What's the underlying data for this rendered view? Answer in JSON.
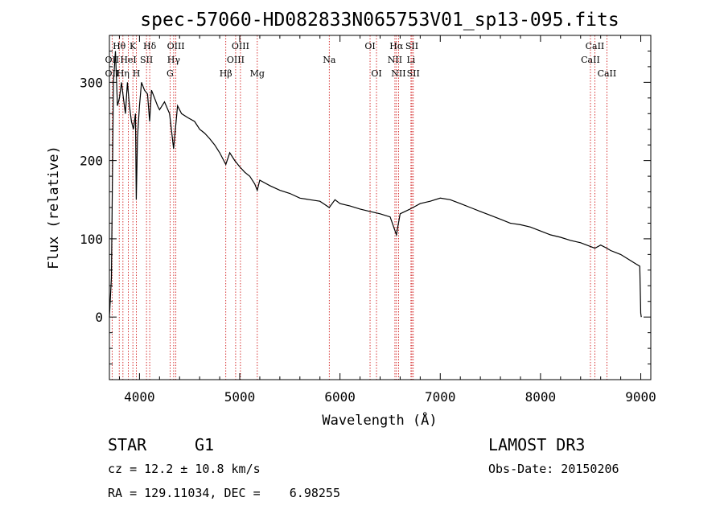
{
  "chart_data": {
    "type": "line",
    "title": "spec-57060-HD082833N065753V01_sp13-095.fits",
    "xlabel": "Wavelength (Å)",
    "ylabel": "Flux (relative)",
    "xlim": [
      3700,
      9100
    ],
    "ylim": [
      -80,
      360
    ],
    "x_ticks": [
      4000,
      5000,
      6000,
      7000,
      8000,
      9000
    ],
    "y_ticks": [
      0,
      100,
      200,
      300
    ],
    "series": [
      {
        "name": "flux",
        "x": [
          3700,
          3720,
          3740,
          3760,
          3780,
          3800,
          3820,
          3840,
          3860,
          3880,
          3900,
          3920,
          3940,
          3960,
          3968,
          3980,
          4000,
          4020,
          4050,
          4080,
          4101,
          4120,
          4150,
          4180,
          4200,
          4250,
          4300,
          4340,
          4380,
          4420,
          4480,
          4550,
          4600,
          4650,
          4700,
          4750,
          4800,
          4861,
          4900,
          4950,
          5000,
          5050,
          5100,
          5150,
          5175,
          5200,
          5300,
          5400,
          5500,
          5600,
          5700,
          5800,
          5893,
          5950,
          6000,
          6100,
          6200,
          6300,
          6400,
          6500,
          6563,
          6600,
          6700,
          6800,
          6900,
          7000,
          7100,
          7200,
          7300,
          7400,
          7500,
          7600,
          7700,
          7800,
          7900,
          8000,
          8100,
          8200,
          8300,
          8400,
          8500,
          8542,
          8600,
          8662,
          8700,
          8800,
          8900,
          8950,
          8990,
          9000,
          9005
        ],
        "values": [
          0,
          50,
          300,
          340,
          270,
          280,
          300,
          280,
          260,
          300,
          270,
          250,
          240,
          260,
          150,
          230,
          270,
          300,
          290,
          285,
          250,
          290,
          280,
          270,
          265,
          275,
          260,
          215,
          270,
          260,
          255,
          250,
          240,
          235,
          228,
          220,
          210,
          195,
          210,
          200,
          192,
          185,
          180,
          170,
          162,
          175,
          168,
          162,
          158,
          152,
          150,
          148,
          140,
          150,
          145,
          142,
          138,
          135,
          132,
          128,
          105,
          132,
          138,
          145,
          148,
          152,
          150,
          145,
          140,
          135,
          130,
          125,
          120,
          118,
          115,
          110,
          105,
          102,
          98,
          95,
          90,
          88,
          92,
          88,
          85,
          80,
          72,
          68,
          65,
          5,
          0
        ]
      }
    ],
    "spectral_lines": [
      {
        "label": "Hθ",
        "x": 3798,
        "row": 1
      },
      {
        "label": "OII",
        "x": 3727,
        "row": 2
      },
      {
        "label": "OII",
        "x": 3727,
        "row": 3
      },
      {
        "label": "Hη",
        "x": 3835,
        "row": 3
      },
      {
        "label": "K",
        "x": 3934,
        "row": 1
      },
      {
        "label": "HeI",
        "x": 3889,
        "row": 2
      },
      {
        "label": "SII",
        "x": 4070,
        "row": 2
      },
      {
        "label": "H",
        "x": 3969,
        "row": 3
      },
      {
        "label": "Hδ",
        "x": 4102,
        "row": 1
      },
      {
        "label": "OIII",
        "x": 4363,
        "row": 1
      },
      {
        "label": "Hγ",
        "x": 4341,
        "row": 2
      },
      {
        "label": "G",
        "x": 4305,
        "row": 3
      },
      {
        "label": "Hβ",
        "x": 4861,
        "row": 3
      },
      {
        "label": "OIII",
        "x": 5007,
        "row": 1
      },
      {
        "label": "OIII",
        "x": 4959,
        "row": 2
      },
      {
        "label": "Mg",
        "x": 5175,
        "row": 3
      },
      {
        "label": "Na",
        "x": 5893,
        "row": 2
      },
      {
        "label": "OI",
        "x": 6300,
        "row": 1
      },
      {
        "label": "OI",
        "x": 6364,
        "row": 3
      },
      {
        "label": "Hα",
        "x": 6563,
        "row": 1
      },
      {
        "label": "SII",
        "x": 6717,
        "row": 1
      },
      {
        "label": "NII",
        "x": 6548,
        "row": 2
      },
      {
        "label": "Li",
        "x": 6708,
        "row": 2
      },
      {
        "label": "NII",
        "x": 6584,
        "row": 3
      },
      {
        "label": "SII",
        "x": 6731,
        "row": 3
      },
      {
        "label": "CaII",
        "x": 8542,
        "row": 1
      },
      {
        "label": "CaII",
        "x": 8498,
        "row": 2
      },
      {
        "label": "CaII",
        "x": 8662,
        "row": 3
      }
    ]
  },
  "footer": {
    "object_type": "STAR",
    "subclass": "G1",
    "survey": "LAMOST DR3",
    "cz_text": "cz = 12.2 ± 10.8 km/s",
    "obs_date": "Obs-Date: 20150206",
    "radec_text": "RA = 129.11034, DEC =    6.98255"
  },
  "colors": {
    "line": "#000000",
    "marker": "#cc0000"
  }
}
